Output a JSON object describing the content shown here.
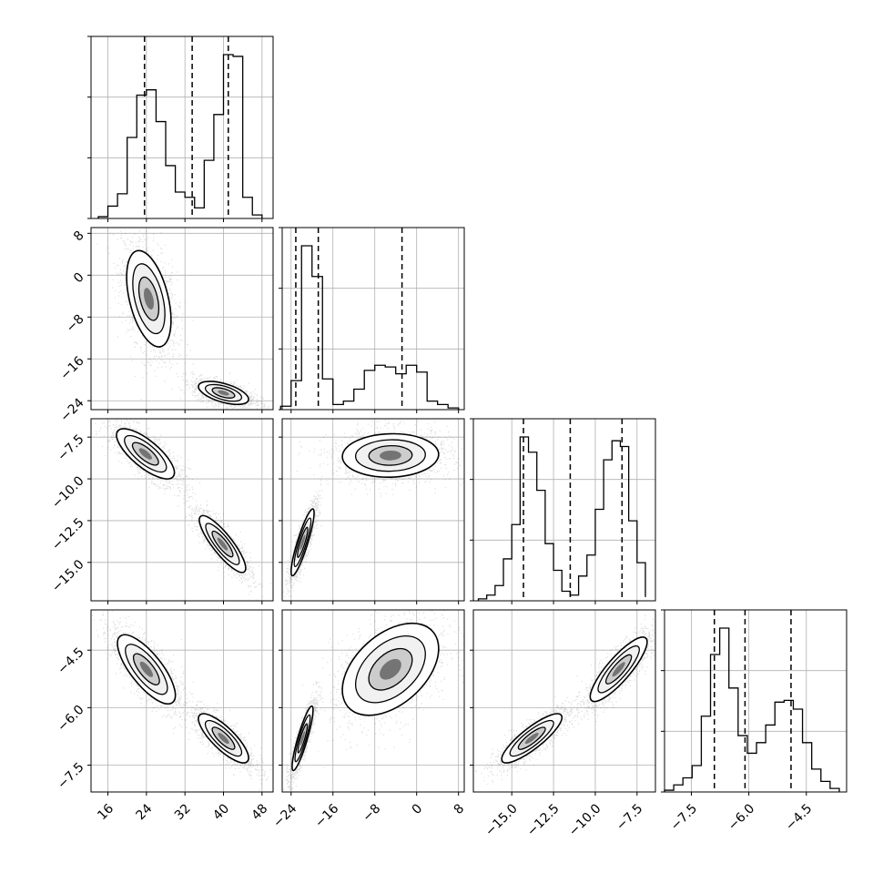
{
  "chart_data": {
    "type": "corner",
    "grid": true,
    "parameters": [
      {
        "ticks": [
          16,
          24,
          32,
          40,
          48
        ],
        "tick_labels": [
          "16",
          "24",
          "32",
          "40",
          "48"
        ],
        "range": [
          12.5,
          50.3
        ],
        "quantile_lines": [
          23.6,
          33.5,
          41.0
        ],
        "hist": {
          "edges": [
            14.0,
            16.0,
            18.0,
            20.0,
            22.0,
            24.0,
            26.0,
            28.0,
            30.0,
            32.0,
            34.0,
            36.0,
            38.0,
            40.0,
            42.0,
            44.0,
            46.0,
            48.0
          ],
          "counts": [
            0.01,
            0.07,
            0.14,
            0.46,
            0.7,
            0.73,
            0.55,
            0.3,
            0.15,
            0.12,
            0.06,
            0.33,
            0.59,
            0.93,
            0.92,
            0.12,
            0.02
          ]
        }
      },
      {
        "ticks": [
          -24,
          -16,
          -8,
          0,
          8
        ],
        "tick_labels": [
          "−24",
          "−16",
          "−8",
          "0",
          "8"
        ],
        "range": [
          -25.7,
          9.1
        ],
        "quantile_lines": [
          -23.1,
          -18.8,
          -2.8
        ],
        "hist": {
          "edges": [
            -26.0,
            -24.0,
            -22.0,
            -20.0,
            -18.0,
            -16.0,
            -14.0,
            -12.0,
            -10.0,
            -8.0,
            -6.0,
            -4.0,
            -2.0,
            0.0,
            2.0,
            4.0,
            6.0,
            8.0
          ],
          "counts": [
            0.02,
            0.17,
            0.96,
            0.78,
            0.18,
            0.03,
            0.05,
            0.12,
            0.23,
            0.26,
            0.25,
            0.21,
            0.26,
            0.22,
            0.05,
            0.03,
            0.01
          ]
        }
      },
      {
        "ticks": [
          -7.5,
          -10.0,
          -12.5,
          -15.0
        ],
        "tick_labels": [
          "−7.5",
          "−10.0",
          "−12.5",
          "−15.0"
        ],
        "range": [
          -17.3,
          -6.4
        ],
        "quantile_lines": [
          -14.3,
          -11.5,
          -8.4
        ],
        "hist": {
          "edges": [
            -17.0,
            -16.5,
            -16.0,
            -15.5,
            -15.0,
            -14.5,
            -14.0,
            -13.5,
            -13.0,
            -12.5,
            -12.0,
            -11.5,
            -11.0,
            -10.5,
            -10.0,
            -9.5,
            -9.0,
            -8.5,
            -8.0,
            -7.5,
            -7.0
          ],
          "counts": [
            0.01,
            0.03,
            0.08,
            0.22,
            0.4,
            0.86,
            0.78,
            0.58,
            0.3,
            0.16,
            0.05,
            0.03,
            0.13,
            0.24,
            0.48,
            0.74,
            0.84,
            0.81,
            0.42,
            0.2,
            0.02
          ]
        }
      },
      {
        "ticks": [
          -7.5,
          -6.0,
          -4.5
        ],
        "tick_labels": [
          "−7.5",
          "−6.0",
          "−4.5"
        ],
        "range": [
          -8.2,
          -3.45
        ],
        "quantile_lines": [
          -6.9,
          -6.1,
          -4.9
        ],
        "hist": {
          "edges": [
            -8.2,
            -7.96,
            -7.72,
            -7.48,
            -7.24,
            -7.0,
            -6.76,
            -6.52,
            -6.28,
            -6.04,
            -5.8,
            -5.56,
            -5.32,
            -5.08,
            -4.84,
            -4.6,
            -4.36,
            -4.12,
            -3.88,
            -3.64
          ],
          "counts": [
            0.01,
            0.04,
            0.08,
            0.15,
            0.43,
            0.78,
            0.93,
            0.59,
            0.32,
            0.22,
            0.28,
            0.38,
            0.51,
            0.52,
            0.47,
            0.28,
            0.13,
            0.06,
            0.02
          ]
        }
      }
    ],
    "pairs": [
      {
        "row": 1,
        "col": 0,
        "clusters": [
          {
            "cx": 24.5,
            "cy": -4.5,
            "sx": 2.3,
            "sy": 4.6,
            "rho": -0.45
          },
          {
            "cx": 40.0,
            "cy": -22.5,
            "sx": 2.6,
            "sy": 1.1,
            "rho": -0.55
          }
        ]
      },
      {
        "row": 2,
        "col": 0,
        "clusters": [
          {
            "cx": 23.8,
            "cy": -8.5,
            "sx": 3.0,
            "sy": 0.75,
            "rho": -0.75
          },
          {
            "cx": 39.8,
            "cy": -13.9,
            "sx": 2.4,
            "sy": 0.85,
            "rho": -0.85
          }
        ]
      },
      {
        "row": 3,
        "col": 0,
        "clusters": [
          {
            "cx": 24.0,
            "cy": -5.0,
            "sx": 3.0,
            "sy": 0.45,
            "rho": -0.75
          },
          {
            "cx": 40.0,
            "cy": -6.8,
            "sx": 2.6,
            "sy": 0.32,
            "rho": -0.8
          }
        ]
      },
      {
        "row": 2,
        "col": 1,
        "clusters": [
          {
            "cx": -21.8,
            "cy": -13.8,
            "sx": 1.1,
            "sy": 1.0,
            "rho": 0.88
          },
          {
            "cx": -5.0,
            "cy": -8.6,
            "sx": 4.6,
            "sy": 0.65,
            "rho": 0.05
          }
        ]
      },
      {
        "row": 3,
        "col": 1,
        "clusters": [
          {
            "cx": -21.8,
            "cy": -6.8,
            "sx": 1.0,
            "sy": 0.42,
            "rho": 0.88
          },
          {
            "cx": -5.0,
            "cy": -5.0,
            "sx": 4.6,
            "sy": 0.6,
            "rho": 0.45
          }
        ]
      },
      {
        "row": 3,
        "col": 2,
        "clusters": [
          {
            "cx": -13.8,
            "cy": -6.8,
            "sx": 0.9,
            "sy": 0.32,
            "rho": 0.85
          },
          {
            "cx": -8.6,
            "cy": -5.0,
            "sx": 0.85,
            "sy": 0.42,
            "rho": 0.85
          }
        ]
      }
    ]
  }
}
